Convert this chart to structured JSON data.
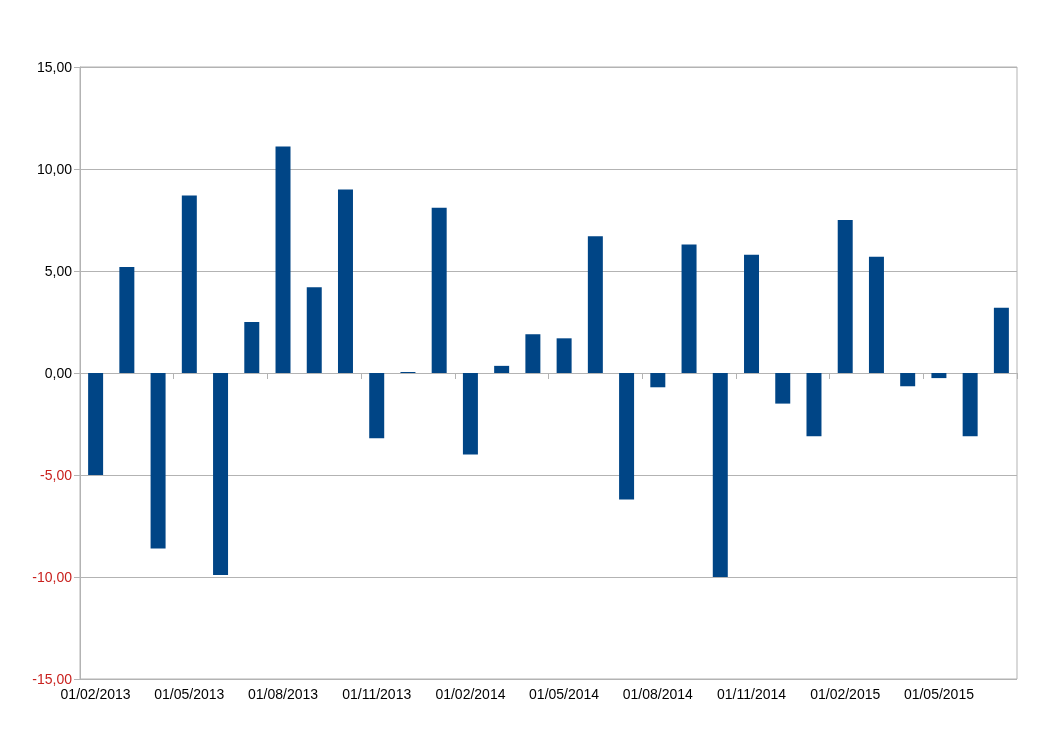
{
  "chart_data": {
    "type": "bar",
    "categories": [
      "01/02/2013",
      null,
      null,
      "01/05/2013",
      null,
      null,
      "01/08/2013",
      null,
      null,
      "01/11/2013",
      null,
      null,
      "01/02/2014",
      null,
      null,
      "01/05/2014",
      null,
      null,
      "01/08/2014",
      null,
      null,
      "01/11/2014",
      null,
      null,
      "01/02/2015",
      null,
      null,
      "01/05/2015",
      null,
      null
    ],
    "values": [
      -5.0,
      5.2,
      -8.6,
      8.7,
      -9.9,
      2.5,
      11.1,
      4.2,
      9.0,
      -3.2,
      0.05,
      8.1,
      -4.0,
      0.35,
      1.9,
      1.7,
      6.7,
      -6.2,
      -0.7,
      6.3,
      -10.0,
      5.8,
      -1.5,
      -3.1,
      7.5,
      5.7,
      -0.65,
      -0.25,
      -3.1,
      3.2
    ],
    "color": "#004586",
    "ylim": [
      -15,
      15
    ],
    "yticks": [
      {
        "value": -15,
        "label": "-15,00"
      },
      {
        "value": -10,
        "label": "-10,00"
      },
      {
        "value": -5,
        "label": "-5,00"
      },
      {
        "value": 0,
        "label": "0,00"
      },
      {
        "value": 5,
        "label": "5,00"
      },
      {
        "value": 10,
        "label": "10,00"
      },
      {
        "value": 15,
        "label": "15,00"
      }
    ],
    "grid": "y"
  }
}
